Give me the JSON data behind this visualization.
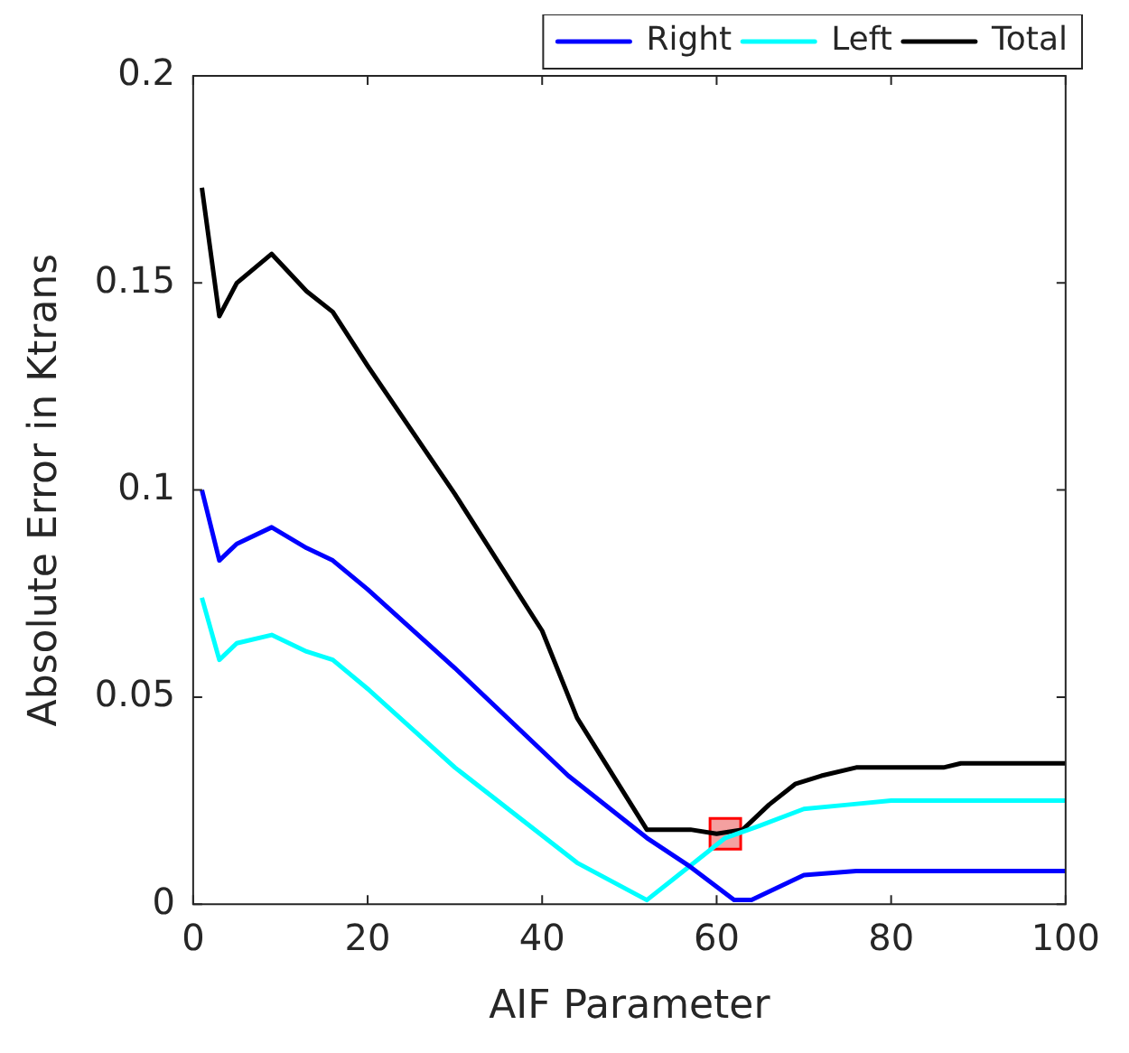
{
  "chart_data": {
    "type": "line",
    "xlabel": "AIF Parameter",
    "ylabel": "Absolute Error in Ktrans",
    "xlim": [
      0,
      100
    ],
    "xticks": [
      0,
      20,
      40,
      60,
      80,
      100
    ],
    "ylim": [
      0,
      0.2
    ],
    "yticks": [
      0,
      0.05,
      0.1,
      0.15,
      0.2
    ],
    "grid": false,
    "legend": "top right",
    "marker": "none",
    "line_style": "solid",
    "series": [
      {
        "name": "Right",
        "color": "#0000ff",
        "x": [
          1,
          3,
          5,
          9,
          13,
          16,
          20,
          30,
          43,
          52,
          57,
          62,
          64,
          67,
          70,
          76,
          100
        ],
        "values": [
          0.1,
          0.083,
          0.087,
          0.091,
          0.086,
          0.083,
          0.076,
          0.057,
          0.031,
          0.016,
          0.009,
          0.001,
          0.001,
          0.004,
          0.007,
          0.008,
          0.008
        ]
      },
      {
        "name": "Left",
        "color": "#00ffff",
        "x": [
          1,
          3,
          5,
          9,
          13,
          16,
          20,
          30,
          44,
          52,
          55,
          58,
          61,
          65,
          70,
          75,
          80,
          100
        ],
        "values": [
          0.074,
          0.059,
          0.063,
          0.065,
          0.061,
          0.059,
          0.052,
          0.033,
          0.01,
          0.001,
          0.006,
          0.011,
          0.016,
          0.019,
          0.023,
          0.024,
          0.025,
          0.025
        ]
      },
      {
        "name": "Total",
        "color": "#000000",
        "x": [
          1,
          3,
          5,
          9,
          13,
          16,
          20,
          30,
          40,
          44,
          52,
          57,
          60,
          63,
          66,
          69,
          72,
          76,
          86,
          88,
          100
        ],
        "values": [
          0.173,
          0.142,
          0.15,
          0.157,
          0.148,
          0.143,
          0.13,
          0.099,
          0.066,
          0.045,
          0.018,
          0.018,
          0.017,
          0.018,
          0.024,
          0.029,
          0.031,
          0.033,
          0.033,
          0.034,
          0.034
        ]
      },
      {
        "type": "scatter",
        "color": "#f4a0a0",
        "marker": "square",
        "x": [
          61
        ],
        "values": [
          0.017
        ]
      }
    ]
  }
}
